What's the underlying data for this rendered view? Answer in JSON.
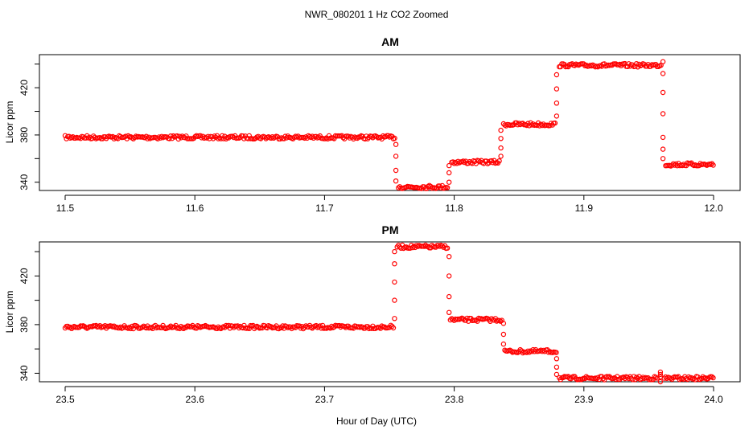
{
  "figure": {
    "title": "NWR_080201  1 Hz CO2 Zoomed",
    "xlabel": "Hour of Day (UTC)"
  },
  "colors": {
    "points": "#ff0000",
    "axes": "#000000",
    "background": "#ffffff"
  },
  "chart_data": [
    {
      "type": "scatter",
      "title": "AM",
      "xlabel": "",
      "ylabel": "Licor ppm",
      "xlim": [
        11.5,
        12.0
      ],
      "ylim": [
        333,
        448
      ],
      "xticks": [
        11.5,
        11.6,
        11.7,
        11.8,
        11.9,
        12.0
      ],
      "xtick_labels": [
        "11.5",
        "11.6",
        "11.7",
        "11.8",
        "11.9",
        "12.0"
      ],
      "yticks": [
        340,
        360,
        380,
        400,
        420,
        440
      ],
      "ytick_labels": [
        "340",
        "380",
        "420"
      ],
      "grid": false,
      "legend": "none",
      "marker": "open-circle",
      "series": [
        {
          "segments": [
            {
              "x_start": 11.5,
              "x_end": 11.755,
              "y": 378
            },
            {
              "x_start": 11.757,
              "x_end": 11.795,
              "y": 336
            },
            {
              "x_start": 11.798,
              "x_end": 11.835,
              "y": 357
            },
            {
              "x_start": 11.838,
              "x_end": 11.878,
              "y": 389
            },
            {
              "x_start": 11.881,
              "x_end": 11.96,
              "y": 439
            },
            {
              "x_start": 11.963,
              "x_end": 12.0,
              "y": 355
            }
          ],
          "transitions": [
            {
              "x": 11.755,
              "y": [
                372,
                362,
                350,
                341
              ]
            },
            {
              "x": 11.796,
              "y": [
                340,
                348,
                354
              ]
            },
            {
              "x": 11.836,
              "y": [
                362,
                369,
                377,
                384
              ]
            },
            {
              "x": 11.879,
              "y": [
                396,
                407,
                419,
                431
              ]
            },
            {
              "x": 11.961,
              "y": [
                442,
                432,
                416,
                398,
                378,
                368,
                360
              ]
            }
          ]
        }
      ]
    },
    {
      "type": "scatter",
      "title": "PM",
      "xlabel": "Hour of Day (UTC)",
      "ylabel": "Licor ppm",
      "xlim": [
        23.5,
        24.0
      ],
      "ylim": [
        333,
        448
      ],
      "xticks": [
        23.5,
        23.6,
        23.7,
        23.8,
        23.9,
        24.0
      ],
      "xtick_labels": [
        "23.5",
        "23.6",
        "23.7",
        "23.8",
        "23.9",
        "24.0"
      ],
      "yticks": [
        340,
        360,
        380,
        400,
        420,
        440
      ],
      "ytick_labels": [
        "340",
        "380",
        "420"
      ],
      "grid": false,
      "legend": "none",
      "marker": "open-circle",
      "series": [
        {
          "segments": [
            {
              "x_start": 23.5,
              "x_end": 23.754,
              "y": 378
            },
            {
              "x_start": 23.756,
              "x_end": 23.795,
              "y": 444
            },
            {
              "x_start": 23.797,
              "x_end": 23.837,
              "y": 384
            },
            {
              "x_start": 23.839,
              "x_end": 23.879,
              "y": 358
            },
            {
              "x_start": 23.881,
              "x_end": 23.957,
              "y": 336
            },
            {
              "x_start": 23.962,
              "x_end": 24.0,
              "y": 336
            }
          ],
          "transitions": [
            {
              "x": 23.754,
              "y": [
                385,
                400,
                415,
                430,
                440
              ]
            },
            {
              "x": 23.796,
              "y": [
                436,
                420,
                403,
                390
              ]
            },
            {
              "x": 23.838,
              "y": [
                381,
                372,
                364
              ]
            },
            {
              "x": 23.879,
              "y": [
                352,
                345,
                339
              ]
            },
            {
              "x": 23.959,
              "y": [
                337,
                341,
                339,
                333
              ]
            }
          ]
        }
      ]
    }
  ]
}
